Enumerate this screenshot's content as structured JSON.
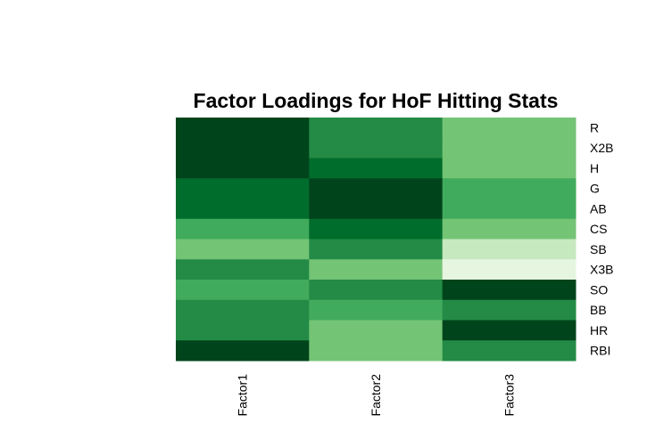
{
  "chart_data": {
    "type": "heatmap",
    "title": "Factor Loadings for HoF Hitting Stats",
    "columns": [
      "Factor1",
      "Factor2",
      "Factor3"
    ],
    "rows": [
      "R",
      "X2B",
      "H",
      "G",
      "AB",
      "CS",
      "SB",
      "X3B",
      "SO",
      "BB",
      "HR",
      "RBI"
    ],
    "color_scale": [
      "#E5F5E0",
      "#C7E9C0",
      "#74C476",
      "#41AB5D",
      "#238B45",
      "#006D2C",
      "#00441B"
    ],
    "cell_levels": [
      [
        6,
        4,
        2
      ],
      [
        6,
        4,
        2
      ],
      [
        6,
        5,
        2
      ],
      [
        5,
        6,
        3
      ],
      [
        5,
        6,
        3
      ],
      [
        3,
        5,
        2
      ],
      [
        2,
        4,
        1
      ],
      [
        4,
        2,
        0
      ],
      [
        3,
        4,
        6
      ],
      [
        4,
        3,
        4
      ],
      [
        4,
        2,
        6
      ],
      [
        6,
        2,
        4
      ]
    ],
    "legend": "none",
    "grid": false
  }
}
